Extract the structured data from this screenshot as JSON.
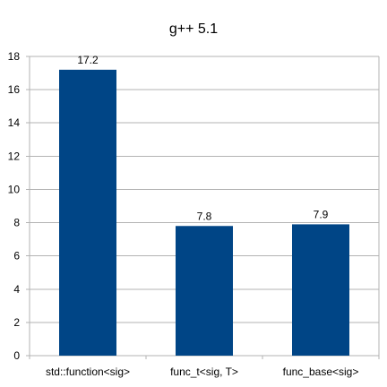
{
  "chart_data": {
    "type": "bar",
    "title": "g++ 5.1",
    "xlabel": "",
    "ylabel": "",
    "categories": [
      "std::function<sig>",
      "func_t<sig, T>",
      "func_base<sig>"
    ],
    "values": [
      17.2,
      7.8,
      7.9
    ],
    "data_labels": [
      "17.2",
      "7.8",
      "7.9"
    ],
    "ylim": [
      0,
      18
    ],
    "yticks": [
      0,
      2,
      4,
      6,
      8,
      10,
      12,
      14,
      16,
      18
    ],
    "grid": true,
    "legend": "none",
    "bar_color": "#004586",
    "grid_color": "#b3b3b3",
    "axis_color": "#b3b3b3"
  }
}
